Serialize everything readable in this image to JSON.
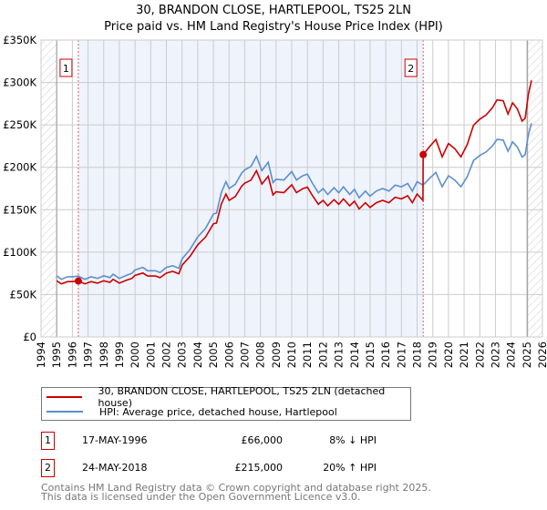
{
  "title": "30, BRANDON CLOSE, HARTLEPOOL, TS25 2LN",
  "subtitle": "Price paid vs. HM Land Registry's House Price Index (HPI)",
  "chart_data": {
    "type": "line",
    "title": "30, BRANDON CLOSE, HARTLEPOOL, TS25 2LN",
    "subtitle": "Price paid vs. HM Land Registry's House Price Index (HPI)",
    "xlim": [
      1994,
      2026
    ],
    "ylim": [
      0,
      350000
    ],
    "x_ticks": [
      "1994",
      "1995",
      "1996",
      "1997",
      "1998",
      "1999",
      "2000",
      "2001",
      "2002",
      "2003",
      "2004",
      "2005",
      "2006",
      "2007",
      "2008",
      "2009",
      "2010",
      "2011",
      "2012",
      "2013",
      "2014",
      "2015",
      "2016",
      "2017",
      "2018",
      "2019",
      "2020",
      "2021",
      "2022",
      "2023",
      "2024",
      "2025",
      "2026"
    ],
    "y_ticks": [
      {
        "v": 0,
        "label": "£0"
      },
      {
        "v": 50000,
        "label": "£50K"
      },
      {
        "v": 100000,
        "label": "£100K"
      },
      {
        "v": 150000,
        "label": "£150K"
      },
      {
        "v": 200000,
        "label": "£200K"
      },
      {
        "v": 250000,
        "label": "£250K"
      },
      {
        "v": 300000,
        "label": "£300K"
      },
      {
        "v": 350000,
        "label": "£350K"
      }
    ],
    "grid": true,
    "colors": {
      "property": "#cc0000",
      "hpi": "#5b8fd0",
      "shade": "#eef3fc"
    },
    "shaded_period": [
      1996.38,
      2018.39
    ],
    "hatched_before": 1995,
    "hatched_after": 2025.05,
    "series": [
      {
        "name": "30, BRANDON CLOSE, HARTLEPOOL, TS25 2LN (detached house)",
        "key": "property",
        "points": [
          [
            1995.0,
            66.2
          ],
          [
            1995.3,
            62.6
          ],
          [
            1995.7,
            65.3
          ],
          [
            1996.0,
            65.3
          ],
          [
            1996.38,
            66
          ],
          [
            1996.8,
            62.6
          ],
          [
            1997.2,
            65.3
          ],
          [
            1997.6,
            63.5
          ],
          [
            1998.0,
            66.2
          ],
          [
            1998.4,
            64.4
          ],
          [
            1998.6,
            68
          ],
          [
            1999.0,
            63.5
          ],
          [
            1999.5,
            67.2
          ],
          [
            1999.8,
            69
          ],
          [
            2000.0,
            72.7
          ],
          [
            2000.5,
            75.4
          ],
          [
            2000.8,
            71.8
          ],
          [
            2001.3,
            71.8
          ],
          [
            2001.6,
            69.9
          ],
          [
            2002.0,
            75.4
          ],
          [
            2002.4,
            77.3
          ],
          [
            2002.8,
            74.5
          ],
          [
            2003.0,
            84.6
          ],
          [
            2003.5,
            94.8
          ],
          [
            2004.0,
            108.6
          ],
          [
            2004.5,
            117.8
          ],
          [
            2005.0,
            133.4
          ],
          [
            2005.2,
            134.3
          ],
          [
            2005.5,
            156.4
          ],
          [
            2005.8,
            168.4
          ],
          [
            2006.0,
            161
          ],
          [
            2006.4,
            165.6
          ],
          [
            2006.8,
            177.6
          ],
          [
            2007.0,
            181.2
          ],
          [
            2007.4,
            184.9
          ],
          [
            2007.75,
            196
          ],
          [
            2008.1,
            180.3
          ],
          [
            2008.5,
            189.5
          ],
          [
            2008.8,
            167.4
          ],
          [
            2009.0,
            171.1
          ],
          [
            2009.5,
            170.2
          ],
          [
            2010.0,
            179.4
          ],
          [
            2010.3,
            170.2
          ],
          [
            2010.7,
            174.8
          ],
          [
            2011.0,
            176.6
          ],
          [
            2011.3,
            167.4
          ],
          [
            2011.7,
            156.4
          ],
          [
            2012.0,
            161
          ],
          [
            2012.3,
            154.6
          ],
          [
            2012.7,
            161.9
          ],
          [
            2013.0,
            156.4
          ],
          [
            2013.3,
            162.8
          ],
          [
            2013.7,
            154.6
          ],
          [
            2014.0,
            160.1
          ],
          [
            2014.3,
            150.9
          ],
          [
            2014.7,
            158.2
          ],
          [
            2015.0,
            152.7
          ],
          [
            2015.4,
            158.2
          ],
          [
            2015.8,
            161
          ],
          [
            2016.2,
            158.2
          ],
          [
            2016.6,
            164.7
          ],
          [
            2017.0,
            162.8
          ],
          [
            2017.4,
            166.5
          ],
          [
            2017.7,
            158.2
          ],
          [
            2018.0,
            168.4
          ],
          [
            2018.37,
            161
          ],
          [
            2018.39,
            215
          ],
          [
            2018.8,
            224.4
          ],
          [
            2019.2,
            232.8
          ],
          [
            2019.6,
            212.4
          ],
          [
            2020.0,
            228
          ],
          [
            2020.4,
            222
          ],
          [
            2020.8,
            212.4
          ],
          [
            2021.2,
            226.8
          ],
          [
            2021.6,
            249.6
          ],
          [
            2022.0,
            256.8
          ],
          [
            2022.4,
            261.6
          ],
          [
            2022.8,
            270
          ],
          [
            2023.1,
            279.6
          ],
          [
            2023.5,
            278.4
          ],
          [
            2023.8,
            262.8
          ],
          [
            2024.1,
            276
          ],
          [
            2024.4,
            268.8
          ],
          [
            2024.7,
            254.4
          ],
          [
            2024.9,
            258
          ],
          [
            2025.1,
            285.6
          ],
          [
            2025.3,
            302.4
          ]
        ]
      },
      {
        "name": "HPI: Average price, detached house, Hartlepool",
        "key": "hpi",
        "points": [
          [
            1995.0,
            72
          ],
          [
            1995.3,
            68
          ],
          [
            1995.7,
            71
          ],
          [
            1996.0,
            71
          ],
          [
            1996.38,
            71.7
          ],
          [
            1996.8,
            68
          ],
          [
            1997.2,
            71
          ],
          [
            1997.6,
            69
          ],
          [
            1998.0,
            72
          ],
          [
            1998.4,
            70
          ],
          [
            1998.6,
            74
          ],
          [
            1999.0,
            69
          ],
          [
            1999.5,
            73
          ],
          [
            1999.8,
            75
          ],
          [
            2000.0,
            79
          ],
          [
            2000.5,
            82
          ],
          [
            2000.8,
            78
          ],
          [
            2001.3,
            78
          ],
          [
            2001.6,
            76
          ],
          [
            2002.0,
            82
          ],
          [
            2002.4,
            84
          ],
          [
            2002.8,
            81
          ],
          [
            2003.0,
            92
          ],
          [
            2003.5,
            103
          ],
          [
            2004.0,
            118
          ],
          [
            2004.5,
            128
          ],
          [
            2005.0,
            145
          ],
          [
            2005.2,
            146
          ],
          [
            2005.5,
            170
          ],
          [
            2005.8,
            183
          ],
          [
            2006.0,
            175
          ],
          [
            2006.4,
            180
          ],
          [
            2006.8,
            193
          ],
          [
            2007.0,
            197
          ],
          [
            2007.4,
            201
          ],
          [
            2007.75,
            213
          ],
          [
            2008.1,
            196
          ],
          [
            2008.5,
            206
          ],
          [
            2008.8,
            182
          ],
          [
            2009.0,
            186
          ],
          [
            2009.5,
            185
          ],
          [
            2010.0,
            195
          ],
          [
            2010.3,
            185
          ],
          [
            2010.7,
            190
          ],
          [
            2011.0,
            192
          ],
          [
            2011.3,
            182
          ],
          [
            2011.7,
            170
          ],
          [
            2012.0,
            175
          ],
          [
            2012.3,
            168
          ],
          [
            2012.7,
            176
          ],
          [
            2013.0,
            170
          ],
          [
            2013.3,
            177
          ],
          [
            2013.7,
            168
          ],
          [
            2014.0,
            174
          ],
          [
            2014.3,
            164
          ],
          [
            2014.7,
            172
          ],
          [
            2015.0,
            166
          ],
          [
            2015.4,
            172
          ],
          [
            2015.8,
            175
          ],
          [
            2016.2,
            172
          ],
          [
            2016.6,
            179
          ],
          [
            2017.0,
            177
          ],
          [
            2017.4,
            181
          ],
          [
            2017.7,
            172
          ],
          [
            2018.0,
            183
          ],
          [
            2018.38,
            179
          ],
          [
            2018.8,
            187
          ],
          [
            2019.2,
            194
          ],
          [
            2019.6,
            177
          ],
          [
            2020.0,
            190
          ],
          [
            2020.4,
            185
          ],
          [
            2020.8,
            177
          ],
          [
            2021.2,
            189
          ],
          [
            2021.6,
            208
          ],
          [
            2022.0,
            214
          ],
          [
            2022.4,
            218
          ],
          [
            2022.8,
            225
          ],
          [
            2023.1,
            233
          ],
          [
            2023.5,
            232
          ],
          [
            2023.8,
            219
          ],
          [
            2024.1,
            230
          ],
          [
            2024.4,
            224
          ],
          [
            2024.7,
            212
          ],
          [
            2024.9,
            215
          ],
          [
            2025.1,
            238
          ],
          [
            2025.3,
            252
          ]
        ]
      }
    ],
    "y_units": "thousands GBP in points",
    "annotations": [
      {
        "label": "1",
        "x": 1996.38,
        "y": 66
      },
      {
        "label": "2",
        "x": 2018.39,
        "y": 215
      }
    ]
  },
  "legend": {
    "property": "30, BRANDON CLOSE, HARTLEPOOL, TS25 2LN (detached house)",
    "hpi": "HPI: Average price, detached house, Hartlepool"
  },
  "sales": [
    {
      "num": "1",
      "date": "17-MAY-1996",
      "price": "£66,000",
      "hpi": "8% ↓ HPI"
    },
    {
      "num": "2",
      "date": "24-MAY-2018",
      "price": "£215,000",
      "hpi": "20% ↑ HPI"
    }
  ],
  "footer": {
    "line1": "Contains HM Land Registry data © Crown copyright and database right 2025.",
    "line2": "This data is licensed under the Open Government Licence v3.0."
  }
}
